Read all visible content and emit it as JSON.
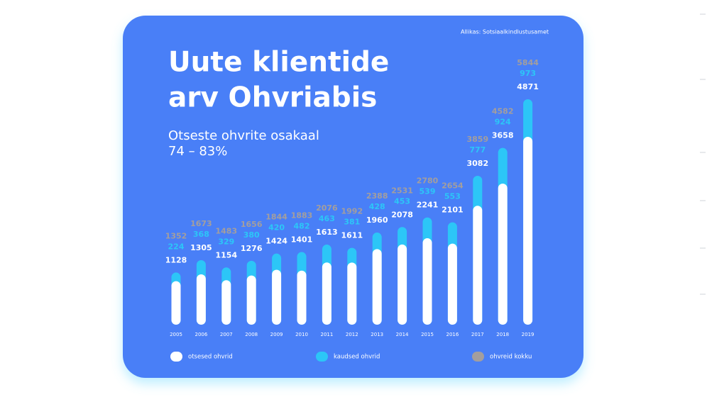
{
  "chart_data": {
    "type": "bar",
    "stacked": true,
    "title": [
      "Uute klientide",
      "arv Ohvriabis"
    ],
    "subtitle": [
      "Otseste ohvrite osakaal",
      "74 – 83%"
    ],
    "source": "Allikas: Sotsiaalkindlustusamet",
    "categories": [
      "2005",
      "2006",
      "2007",
      "2008",
      "2009",
      "2010",
      "2011",
      "2012",
      "2013",
      "2014",
      "2015",
      "2016",
      "2017",
      "2018",
      "2019"
    ],
    "series": [
      {
        "name": "otsesed ohvrid",
        "color": "#ffffff",
        "values": [
          1128,
          1305,
          1154,
          1276,
          1424,
          1401,
          1613,
          1611,
          1960,
          2078,
          2241,
          2101,
          3082,
          3658,
          4871
        ]
      },
      {
        "name": "kaudsed ohvrid",
        "color": "#2cc6f7",
        "values": [
          224,
          368,
          329,
          380,
          420,
          482,
          463,
          381,
          428,
          453,
          539,
          553,
          777,
          924,
          973
        ]
      },
      {
        "name": "ohvreid kokku",
        "color": "#a39e9e",
        "type": "label",
        "values": [
          1352,
          1673,
          1483,
          1656,
          1844,
          1883,
          2076,
          1992,
          2388,
          2531,
          2780,
          2654,
          3859,
          4582,
          5844
        ]
      }
    ]
  }
}
